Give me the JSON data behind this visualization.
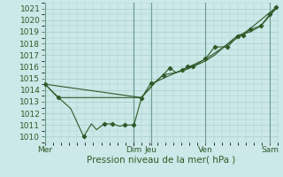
{
  "xlabel": "Pression niveau de la mer( hPa )",
  "bg_color": "#cce8e8",
  "grid_color": "#aacece",
  "line_color": "#2d5a27",
  "vline_color": "#6a9a8a",
  "ylim": [
    1009.5,
    1021.5
  ],
  "yticks": [
    1010,
    1011,
    1012,
    1013,
    1014,
    1015,
    1016,
    1017,
    1018,
    1019,
    1020,
    1021
  ],
  "day_labels": [
    "Mer",
    "Dim",
    "Jeu",
    "Ven",
    "Sam"
  ],
  "day_positions": [
    0.0,
    3.46,
    4.12,
    6.25,
    8.75
  ],
  "xlim": [
    -0.05,
    9.1
  ],
  "series": [
    [
      [
        0.0,
        1014.5
      ],
      [
        0.5,
        1013.4
      ],
      [
        1.0,
        1012.4
      ],
      [
        1.5,
        1010.0
      ],
      [
        1.8,
        1011.1
      ],
      [
        2.0,
        1010.6
      ],
      [
        2.3,
        1011.1
      ],
      [
        2.6,
        1011.1
      ],
      [
        2.9,
        1010.9
      ],
      [
        3.1,
        1011.0
      ],
      [
        3.46,
        1011.0
      ],
      [
        3.75,
        1013.3
      ],
      [
        4.12,
        1014.6
      ],
      [
        4.3,
        1014.7
      ],
      [
        4.6,
        1015.3
      ],
      [
        4.85,
        1015.9
      ],
      [
        5.1,
        1015.5
      ],
      [
        5.35,
        1015.7
      ],
      [
        5.55,
        1016.0
      ],
      [
        5.75,
        1016.0
      ],
      [
        6.25,
        1016.7
      ],
      [
        6.6,
        1017.7
      ],
      [
        7.1,
        1017.7
      ],
      [
        7.5,
        1018.6
      ],
      [
        7.7,
        1018.7
      ],
      [
        8.0,
        1019.2
      ],
      [
        8.4,
        1019.5
      ],
      [
        8.75,
        1020.5
      ],
      [
        9.0,
        1021.1
      ]
    ],
    [
      [
        0.0,
        1014.5
      ],
      [
        0.5,
        1013.35
      ],
      [
        3.75,
        1013.35
      ],
      [
        4.3,
        1014.7
      ],
      [
        4.6,
        1015.3
      ],
      [
        5.1,
        1015.5
      ],
      [
        5.55,
        1015.8
      ],
      [
        6.25,
        1016.5
      ],
      [
        6.6,
        1017.0
      ],
      [
        7.5,
        1018.7
      ],
      [
        8.0,
        1019.0
      ],
      [
        8.4,
        1019.5
      ],
      [
        9.0,
        1021.0
      ]
    ],
    [
      [
        0.0,
        1014.5
      ],
      [
        3.75,
        1013.35
      ],
      [
        4.3,
        1014.7
      ],
      [
        5.1,
        1015.5
      ],
      [
        6.25,
        1016.65
      ],
      [
        7.5,
        1018.5
      ],
      [
        8.0,
        1019.3
      ],
      [
        9.0,
        1021.1
      ]
    ]
  ],
  "markers": [
    [
      0.0,
      1014.5
    ],
    [
      0.5,
      1013.4
    ],
    [
      1.5,
      1010.0
    ],
    [
      2.3,
      1011.1
    ],
    [
      2.6,
      1011.1
    ],
    [
      3.1,
      1011.0
    ],
    [
      3.46,
      1011.0
    ],
    [
      3.75,
      1013.3
    ],
    [
      4.12,
      1014.6
    ],
    [
      4.6,
      1015.3
    ],
    [
      4.85,
      1015.9
    ],
    [
      5.35,
      1015.7
    ],
    [
      5.55,
      1016.0
    ],
    [
      5.75,
      1016.0
    ],
    [
      6.25,
      1016.7
    ],
    [
      6.6,
      1017.7
    ],
    [
      7.1,
      1017.7
    ],
    [
      7.5,
      1018.6
    ],
    [
      7.7,
      1018.7
    ],
    [
      8.0,
      1019.2
    ],
    [
      8.4,
      1019.5
    ],
    [
      8.75,
      1020.5
    ],
    [
      9.0,
      1021.1
    ]
  ]
}
